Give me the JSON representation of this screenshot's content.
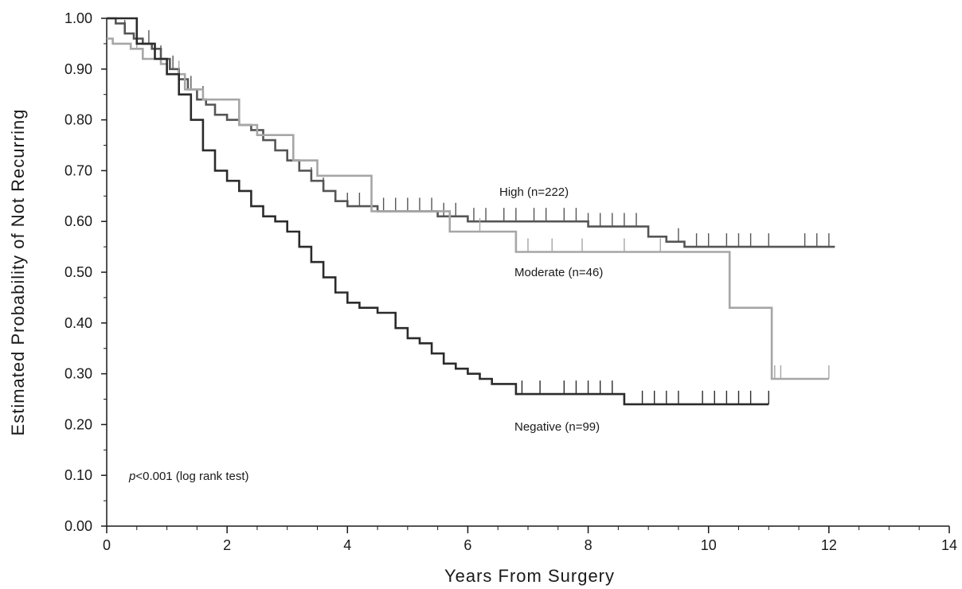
{
  "chart_data": {
    "type": "line",
    "step": true,
    "xlabel": "Years From Surgery",
    "ylabel": "Estimated Probability of Not Recurring",
    "xlim": [
      0,
      14
    ],
    "ylim": [
      0,
      1
    ],
    "x_ticks": [
      "0",
      "2",
      "4",
      "6",
      "8",
      "10",
      "12",
      "14"
    ],
    "y_ticks": [
      "0.00",
      "0.10",
      "0.20",
      "0.30",
      "0.40",
      "0.50",
      "0.60",
      "0.70",
      "0.80",
      "0.90",
      "1.00"
    ],
    "grid": false,
    "annotation": {
      "italic": "p",
      "text": "<0.001 (log rank test)"
    },
    "series": [
      {
        "name": "High (n=222)",
        "color": "#555555",
        "x": [
          0,
          0.15,
          0.3,
          0.45,
          0.6,
          0.75,
          0.9,
          1.05,
          1.2,
          1.35,
          1.5,
          1.65,
          1.8,
          2.0,
          2.2,
          2.4,
          2.6,
          2.8,
          3.0,
          3.2,
          3.4,
          3.6,
          3.8,
          4.0,
          4.5,
          5.0,
          5.5,
          6.0,
          6.5,
          7.0,
          7.5,
          8.0,
          8.5,
          9.0,
          9.3,
          9.6,
          10.0,
          12.1
        ],
        "y": [
          1.0,
          0.99,
          0.97,
          0.96,
          0.95,
          0.94,
          0.92,
          0.9,
          0.88,
          0.86,
          0.84,
          0.83,
          0.81,
          0.8,
          0.79,
          0.78,
          0.76,
          0.74,
          0.72,
          0.7,
          0.68,
          0.66,
          0.64,
          0.63,
          0.62,
          0.62,
          0.61,
          0.6,
          0.6,
          0.6,
          0.6,
          0.59,
          0.59,
          0.57,
          0.56,
          0.55,
          0.55,
          0.55
        ],
        "censor_x": [
          0.3,
          0.5,
          0.7,
          0.9,
          1.1,
          1.4,
          1.6,
          3.4,
          3.6,
          4.0,
          4.2,
          4.4,
          4.6,
          4.8,
          5.0,
          5.2,
          5.4,
          5.6,
          5.8,
          6.1,
          6.3,
          6.6,
          6.8,
          7.1,
          7.3,
          7.6,
          7.8,
          8.0,
          8.2,
          8.4,
          8.6,
          8.8,
          9.5,
          9.8,
          10.0,
          10.3,
          10.5,
          10.7,
          11.0,
          11.6,
          11.8,
          12.0
        ]
      },
      {
        "name": "Moderate (n=46)",
        "color": "#a6a6a6",
        "x": [
          0,
          0.1,
          0.4,
          0.6,
          0.9,
          1.0,
          1.3,
          1.6,
          2.2,
          2.5,
          3.1,
          3.5,
          4.4,
          5.7,
          6.8,
          10.35,
          11.05,
          12.0
        ],
        "y": [
          0.96,
          0.95,
          0.94,
          0.92,
          0.91,
          0.89,
          0.86,
          0.84,
          0.79,
          0.77,
          0.72,
          0.69,
          0.62,
          0.58,
          0.54,
          0.43,
          0.29,
          0.29
        ],
        "censor_x": [
          0.5,
          1.2,
          6.2,
          7.0,
          7.4,
          7.9,
          8.6,
          9.2,
          11.1,
          11.2,
          12.0
        ]
      },
      {
        "name": "Negative (n=99)",
        "color": "#2b2b2b",
        "x": [
          0,
          0.5,
          0.8,
          1.0,
          1.2,
          1.4,
          1.6,
          1.8,
          2.0,
          2.2,
          2.4,
          2.6,
          2.8,
          3.0,
          3.2,
          3.4,
          3.6,
          3.8,
          4.0,
          4.2,
          4.5,
          4.8,
          5.0,
          5.2,
          5.4,
          5.6,
          5.8,
          6.0,
          6.2,
          6.4,
          6.8,
          8.6,
          11.0
        ],
        "y": [
          1.0,
          0.95,
          0.92,
          0.89,
          0.85,
          0.8,
          0.74,
          0.7,
          0.68,
          0.66,
          0.63,
          0.61,
          0.6,
          0.58,
          0.55,
          0.52,
          0.49,
          0.46,
          0.44,
          0.43,
          0.42,
          0.39,
          0.37,
          0.36,
          0.34,
          0.32,
          0.31,
          0.3,
          0.29,
          0.28,
          0.26,
          0.24,
          0.24
        ],
        "censor_x": [
          6.9,
          7.2,
          7.6,
          7.8,
          8.0,
          8.2,
          8.4,
          8.9,
          9.1,
          9.3,
          9.5,
          9.9,
          10.1,
          10.3,
          10.5,
          10.7,
          11.0
        ]
      }
    ]
  }
}
